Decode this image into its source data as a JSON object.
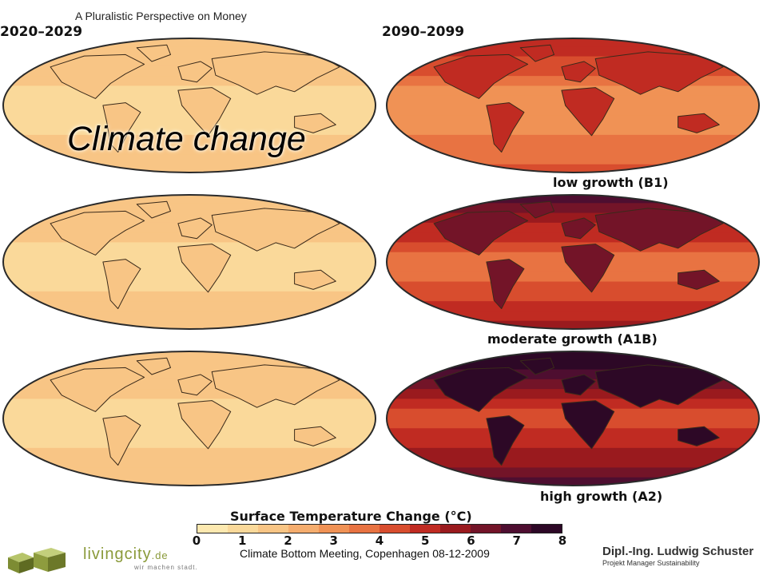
{
  "header": {
    "text": "A Pluralistic Perspective on Money"
  },
  "slide": {
    "title": "Climate change"
  },
  "periods": [
    "2020–2029",
    "2090–2099"
  ],
  "scenarios": [
    {
      "label": "low growth (B1)",
      "near_level": 1,
      "far_level": 3
    },
    {
      "label": "moderate growth (A1B)",
      "near_level": 1,
      "far_level": 4
    },
    {
      "label": "high growth (A2)",
      "near_level": 1,
      "far_level": 5
    }
  ],
  "legend": {
    "title": "Surface Temperature Change (°C)",
    "ticks": [
      "0",
      "1",
      "2",
      "3",
      "4",
      "5",
      "6",
      "7",
      "8"
    ],
    "tick_min": 0,
    "tick_max": 8,
    "colors": [
      "#fde9b0",
      "#fad99a",
      "#f8c585",
      "#f5ad6e",
      "#f09255",
      "#e87342",
      "#d84d2e",
      "#c02b22",
      "#9a1a1e",
      "#731428",
      "#4e0e30",
      "#2d0826"
    ]
  },
  "footer": {
    "event": "Climate Bottom Meeting, Copenhagen 08-12-2009",
    "logo_name": "livingcity",
    "logo_suffix": ".de",
    "logo_tagline": "wir machen stadt.",
    "author": "Dipl.-Ing. Ludwig Schuster",
    "author_role": "Projekt Manager Sustainability"
  }
}
